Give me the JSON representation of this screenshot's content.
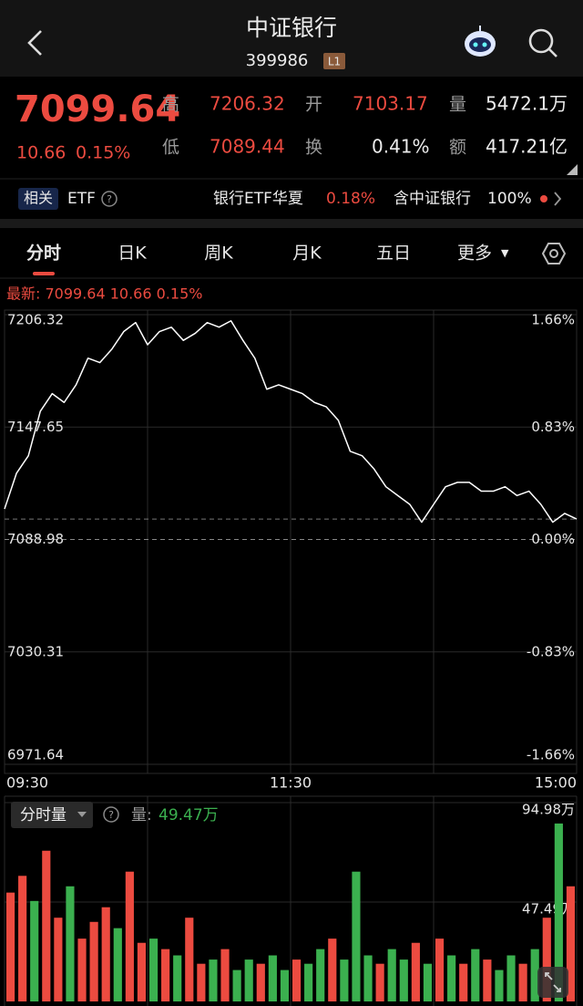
{
  "header": {
    "title": "中证银行",
    "code": "399986",
    "badge": "L1"
  },
  "quote": {
    "price": "7099.64",
    "change": "10.66",
    "change_pct": "0.15%",
    "stats": [
      {
        "label": "高",
        "value": "7206.32"
      },
      {
        "label": "开",
        "value": "7103.17"
      },
      {
        "label": "量",
        "value": "5472.1万"
      },
      {
        "label": "低",
        "value": "7089.44"
      },
      {
        "label": "换",
        "value": "0.41%"
      },
      {
        "label": "额",
        "value": "417.21亿"
      }
    ]
  },
  "related": {
    "tag": "相关",
    "type": "ETF",
    "fund": "银行ETF华夏",
    "fund_change": "0.18%",
    "holding_label": "含中证银行",
    "holding_pct": "100%"
  },
  "tabs": [
    "分时",
    "日K",
    "周K",
    "月K",
    "五日",
    "更多"
  ],
  "chart_data": [
    {
      "type": "line",
      "annotation": "最新: 7099.64  10.66  0.15%",
      "x": [
        0,
        5,
        10,
        15,
        20,
        25,
        30,
        35,
        40,
        45,
        50,
        55,
        60,
        65,
        70,
        75,
        80,
        85,
        90,
        95,
        100,
        105,
        110,
        115,
        120,
        125,
        130,
        135,
        140,
        145,
        150,
        155,
        160,
        165,
        170,
        175,
        180,
        185,
        190,
        195,
        200,
        205,
        210,
        215,
        220,
        225,
        230,
        235,
        240
      ],
      "values": [
        7104.9,
        7123.5,
        7132.7,
        7155.9,
        7165.1,
        7160.5,
        7169.7,
        7183.6,
        7181.3,
        7188.3,
        7197.5,
        7202.2,
        7190.6,
        7197.5,
        7199.8,
        7192.9,
        7196.6,
        7202.2,
        7199.8,
        7203.1,
        7192.9,
        7183.6,
        7167.4,
        7169.7,
        7167.4,
        7165.1,
        7160.5,
        7158.2,
        7151.2,
        7135.0,
        7132.7,
        7125.8,
        7116.5,
        7111.9,
        7107.3,
        7098.0,
        7107.3,
        7116.5,
        7118.8,
        7118.8,
        7114.2,
        7114.2,
        7116.5,
        7111.9,
        7114.2,
        7107.3,
        7098.0,
        7102.6,
        7099.64
      ],
      "color": "#ffffff",
      "xlim": [
        0,
        240
      ],
      "xticks": [
        {
          "value": 0,
          "label": "09:30"
        },
        {
          "value": 120,
          "label": "11:30"
        },
        {
          "value": 240,
          "label": "15:00"
        }
      ],
      "ylim": [
        6971.64,
        7206.32
      ],
      "yticks": [
        7206.32,
        7147.65,
        7088.98,
        7030.31,
        6971.64
      ],
      "y2lim": [
        -1.66,
        1.66
      ],
      "y2ticks": [
        {
          "value": 1.66,
          "label": "1.66%"
        },
        {
          "value": 0.83,
          "label": "0.83%"
        },
        {
          "value": 0,
          "label": "0.00%"
        },
        {
          "value": -0.83,
          "label": "-0.83%"
        },
        {
          "value": -1.66,
          "label": "-1.66%"
        }
      ],
      "grid": true
    },
    {
      "type": "bar",
      "title": "分时量",
      "label": "量:",
      "current": "49.47万",
      "x": [
        0,
        5,
        10,
        15,
        20,
        25,
        30,
        35,
        40,
        45,
        50,
        55,
        60,
        65,
        70,
        75,
        80,
        85,
        90,
        95,
        100,
        105,
        110,
        115,
        120,
        125,
        130,
        135,
        140,
        145,
        150,
        155,
        160,
        165,
        170,
        175,
        180,
        185,
        190,
        195,
        200,
        205,
        210,
        215,
        220,
        225,
        230,
        235
      ],
      "values": [
        52,
        60,
        48,
        72,
        40,
        55,
        30,
        38,
        45,
        35,
        62,
        28,
        30,
        25,
        22,
        40,
        18,
        20,
        25,
        15,
        20,
        18,
        22,
        15,
        20,
        18,
        25,
        30,
        20,
        62,
        22,
        18,
        25,
        20,
        28,
        18,
        30,
        22,
        18,
        25,
        20,
        15,
        22,
        18,
        25,
        40,
        85,
        55
      ],
      "colors": [
        "#ec4b40",
        "#ec4b40",
        "#3bb04f",
        "#ec4b40",
        "#ec4b40",
        "#3bb04f",
        "#ec4b40",
        "#ec4b40",
        "#ec4b40",
        "#3bb04f",
        "#ec4b40",
        "#ec4b40",
        "#3bb04f",
        "#ec4b40",
        "#3bb04f",
        "#ec4b40",
        "#ec4b40",
        "#3bb04f",
        "#ec4b40",
        "#3bb04f",
        "#3bb04f",
        "#ec4b40",
        "#3bb04f",
        "#3bb04f",
        "#ec4b40",
        "#3bb04f",
        "#3bb04f",
        "#ec4b40",
        "#3bb04f",
        "#3bb04f",
        "#3bb04f",
        "#ec4b40",
        "#3bb04f",
        "#3bb04f",
        "#ec4b40",
        "#3bb04f",
        "#ec4b40",
        "#3bb04f",
        "#ec4b40",
        "#3bb04f",
        "#ec4b40",
        "#3bb04f",
        "#3bb04f",
        "#ec4b40",
        "#3bb04f",
        "#ec4b40",
        "#3bb04f",
        "#ec4b40"
      ],
      "xlim": [
        0,
        240
      ],
      "ylim": [
        0,
        94.98
      ],
      "yticks": [
        {
          "value": 47.49,
          "label": "47.49万"
        },
        {
          "value": 94.98,
          "label": "94.98万"
        }
      ]
    }
  ]
}
